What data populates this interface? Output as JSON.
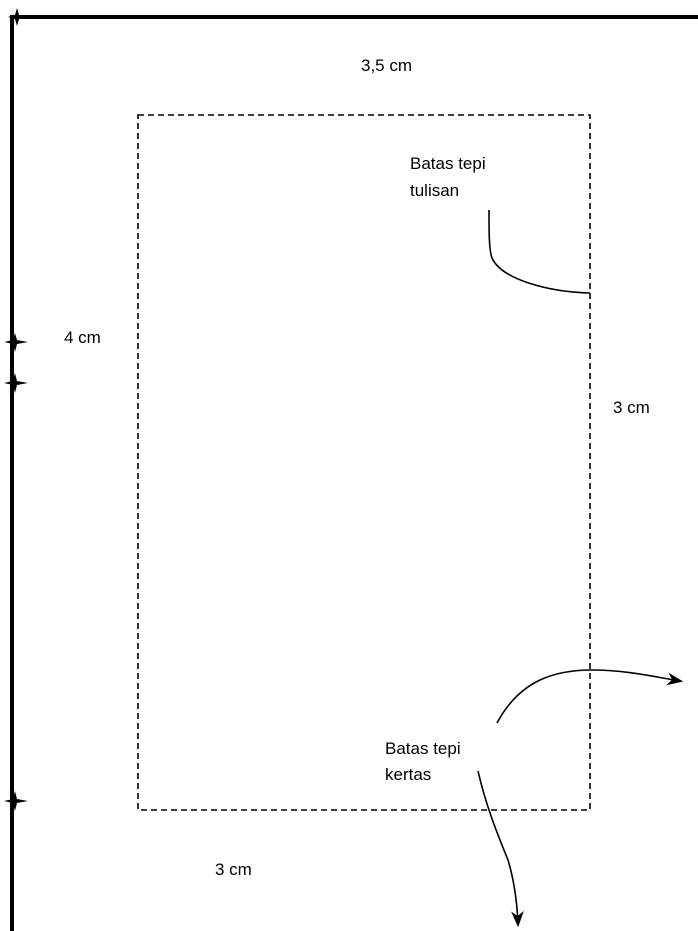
{
  "margins": {
    "top": "3,5 cm",
    "left": "4 cm",
    "right": "3 cm",
    "bottom": "3 cm"
  },
  "annotations": {
    "text_boundary": {
      "line1": "Batas tepi",
      "line2": "tulisan"
    },
    "paper_boundary": {
      "line1": "Batas tepi",
      "line2": "kertas"
    }
  },
  "colors": {
    "stroke": "#000000",
    "background": "#ffffff"
  }
}
